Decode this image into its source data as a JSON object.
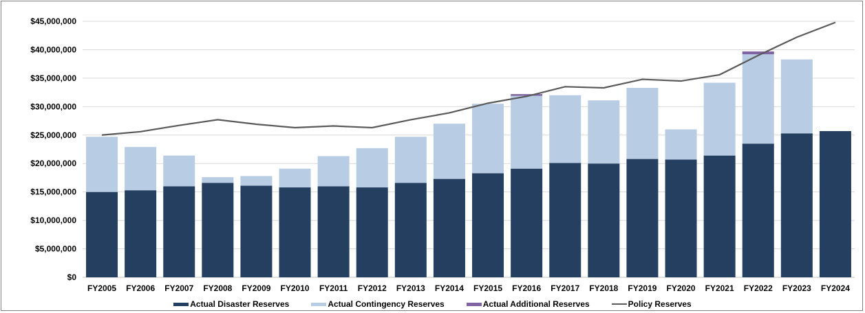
{
  "chart_data": {
    "type": "bar",
    "stacked": true,
    "categories": [
      "FY2005",
      "FY2006",
      "FY2007",
      "FY2008",
      "FY2009",
      "FY2010",
      "FY2011",
      "FY2012",
      "FY2013",
      "FY2014",
      "FY2015",
      "FY2016",
      "FY2017",
      "FY2018",
      "FY2019",
      "FY2020",
      "FY2021",
      "FY2022",
      "FY2023",
      "FY2024"
    ],
    "series": [
      {
        "name": "Actual Disaster Reserves",
        "kind": "bar",
        "color": "#243F60",
        "values": [
          15000000,
          15300000,
          16000000,
          16600000,
          16100000,
          15800000,
          16000000,
          15800000,
          16600000,
          17300000,
          18300000,
          19100000,
          20100000,
          20000000,
          20800000,
          20700000,
          21400000,
          23500000,
          25300000,
          25700000
        ]
      },
      {
        "name": "Actual Contingency Reserves",
        "kind": "bar",
        "color": "#B8CCE4",
        "values": [
          9700000,
          7600000,
          5400000,
          1000000,
          1700000,
          3300000,
          5300000,
          6900000,
          8100000,
          9700000,
          12200000,
          12800000,
          11900000,
          11100000,
          12500000,
          5300000,
          12800000,
          15700000,
          13000000,
          0
        ]
      },
      {
        "name": "Actual Additional Reserves",
        "kind": "bar",
        "color": "#8064A2",
        "values": [
          0,
          0,
          0,
          0,
          0,
          0,
          0,
          0,
          0,
          0,
          0,
          300000,
          0,
          0,
          0,
          0,
          0,
          500000,
          0,
          0
        ]
      },
      {
        "name": "Policy Reserves",
        "kind": "line",
        "color": "#595959",
        "values": [
          25000000,
          25600000,
          26700000,
          27700000,
          26900000,
          26300000,
          26600000,
          26300000,
          27700000,
          28900000,
          30600000,
          31800000,
          33500000,
          33300000,
          34800000,
          34500000,
          35600000,
          39000000,
          42200000,
          44800000
        ]
      }
    ],
    "y_ticks": [
      "$0",
      "$5,000,000",
      "$10,000,000",
      "$15,000,000",
      "$20,000,000",
      "$25,000,000",
      "$30,000,000",
      "$35,000,000",
      "$40,000,000",
      "$45,000,000"
    ],
    "ylim": [
      0,
      45000000
    ],
    "grid": true,
    "legend_position": "bottom"
  }
}
